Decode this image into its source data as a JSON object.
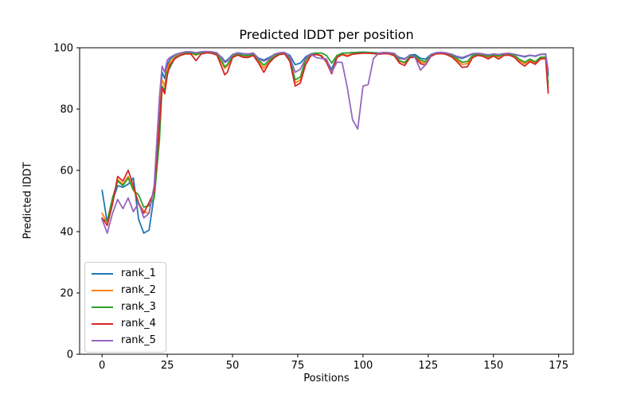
{
  "chart_data": {
    "type": "line",
    "title": "Predicted lDDT per position",
    "xlabel": "Positions",
    "ylabel": "Predicted lDDT",
    "xlim": [
      -8.6,
      180.6
    ],
    "ylim": [
      0,
      100
    ],
    "xticks": [
      0,
      25,
      50,
      75,
      100,
      125,
      150,
      175
    ],
    "yticks": [
      0,
      20,
      40,
      60,
      80,
      100
    ],
    "grid": false,
    "legend_position": "lower left",
    "colors": {
      "background": "#ffffff",
      "spine": "#000000",
      "legend_border": "#cccccc"
    },
    "x": [
      0,
      2,
      4,
      6,
      8,
      10,
      12,
      14,
      16,
      18,
      20,
      22,
      23,
      24,
      25,
      26,
      28,
      30,
      32,
      34,
      36,
      38,
      40,
      42,
      44,
      46,
      47,
      48,
      50,
      52,
      54,
      56,
      58,
      60,
      62,
      64,
      66,
      68,
      70,
      72,
      74,
      76,
      78,
      80,
      82,
      84,
      86,
      88,
      90,
      92,
      94,
      96,
      98,
      100,
      102,
      104,
      106,
      108,
      110,
      112,
      114,
      116,
      118,
      120,
      122,
      124,
      126,
      128,
      130,
      132,
      134,
      136,
      138,
      140,
      142,
      144,
      146,
      148,
      150,
      152,
      154,
      156,
      158,
      160,
      162,
      164,
      166,
      168,
      170,
      171
    ],
    "series": [
      {
        "name": "rank_1",
        "color": "#1f77b4",
        "values": [
          53.5,
          43,
          50,
          55,
          54.5,
          55.5,
          57.5,
          44,
          39.5,
          40.5,
          52,
          81,
          92,
          90,
          94.5,
          96.3,
          97.6,
          98.2,
          98.5,
          98.6,
          98.2,
          98.5,
          98.6,
          98.5,
          98.2,
          96.8,
          95.6,
          96,
          97.8,
          98.3,
          98,
          97.9,
          98.2,
          96.6,
          96,
          96.8,
          97.8,
          98.3,
          98.4,
          97.5,
          94.5,
          95,
          97,
          98,
          98.3,
          97.2,
          95.8,
          93,
          97.2,
          98.2,
          98.3,
          98.4,
          98.5,
          98.6,
          98.5,
          98.4,
          98.3,
          98.4,
          98.3,
          98,
          96.8,
          96.4,
          97.6,
          97.8,
          96.6,
          96.3,
          97.8,
          98.4,
          98.5,
          98.3,
          97.8,
          97,
          96.5,
          97.2,
          98,
          98.1,
          97.9,
          97.6,
          97.9,
          97.7,
          98,
          98.1,
          97.8,
          97.4,
          97,
          97.5,
          97.2,
          97.8,
          97.9,
          91
        ]
      },
      {
        "name": "rank_2",
        "color": "#ff7f0e",
        "values": [
          46,
          43,
          50,
          57,
          55.5,
          58,
          54,
          49.5,
          46.5,
          46,
          55,
          83,
          89.5,
          87.5,
          93,
          95.5,
          97,
          97.8,
          98.2,
          98.2,
          97.6,
          98.2,
          98.4,
          98.3,
          97.8,
          95,
          93.3,
          94,
          97,
          97.8,
          97.3,
          97.2,
          97.7,
          95.5,
          93.3,
          95.3,
          97,
          98,
          98.1,
          96,
          88.5,
          89.5,
          95,
          97.6,
          97.9,
          97.5,
          95.6,
          91.8,
          97,
          97.9,
          97.5,
          98,
          98.2,
          98.3,
          98.3,
          98.2,
          98,
          98.2,
          98.1,
          97.6,
          95.6,
          95,
          97,
          97.2,
          95.4,
          95,
          97.4,
          98.1,
          98.2,
          97.9,
          97.2,
          96,
          94.6,
          94.8,
          97.2,
          97.7,
          97.4,
          96.8,
          97.5,
          97,
          97.7,
          97.8,
          97.2,
          95.8,
          94.8,
          96,
          95,
          96.6,
          96.8,
          87
        ]
      },
      {
        "name": "rank_3",
        "color": "#2ca02c",
        "values": [
          44,
          43.5,
          51,
          56.5,
          55,
          57.5,
          53.5,
          52,
          48,
          48.5,
          51,
          70,
          87.5,
          86,
          92,
          93.5,
          96.8,
          97.6,
          98.3,
          98.4,
          97.8,
          98.3,
          98.5,
          98.4,
          98,
          95.5,
          93.8,
          94.5,
          97.2,
          98,
          97.5,
          97.4,
          97.9,
          96,
          94.3,
          95.8,
          97.2,
          98.1,
          98.2,
          96.5,
          89.5,
          90.5,
          96,
          97.8,
          98.2,
          98.3,
          97.5,
          95,
          97.5,
          98.2,
          98.3,
          98.4,
          98.5,
          98.5,
          98.4,
          98.3,
          98.2,
          98.3,
          98.2,
          97.8,
          95.8,
          95.2,
          97.2,
          97.4,
          96,
          95.5,
          97.6,
          98.3,
          98.4,
          98.1,
          97.4,
          96.5,
          95.3,
          95.5,
          97.5,
          97.9,
          97.6,
          97.2,
          97.7,
          97.3,
          97.9,
          98,
          97.5,
          96.2,
          95.3,
          96.3,
          95.4,
          96.9,
          97,
          88.2
        ]
      },
      {
        "name": "rank_4",
        "color": "#d62728",
        "values": [
          44.5,
          42,
          49,
          58,
          56.5,
          60,
          55,
          49,
          46,
          49.5,
          53,
          75,
          87,
          85,
          91,
          94.5,
          96.5,
          97.5,
          98,
          98,
          95.8,
          98,
          98.3,
          98.2,
          97.6,
          93.5,
          91.2,
          92,
          96.8,
          97.6,
          96.9,
          96.8,
          97.5,
          95,
          92,
          95,
          96.8,
          97.8,
          98,
          95.5,
          87.5,
          88.5,
          94.5,
          97.4,
          97.8,
          97.4,
          95.3,
          91.5,
          96.8,
          97.8,
          97.2,
          97.9,
          98.1,
          98.2,
          98.2,
          98.1,
          97.9,
          98.1,
          98,
          97.4,
          95,
          94.2,
          96.8,
          96.9,
          94.8,
          94.4,
          97.2,
          98,
          98.1,
          97.8,
          97,
          95.5,
          93.6,
          93.8,
          96.8,
          97.5,
          97.2,
          96.4,
          97.3,
          96.3,
          97.5,
          97.6,
          96.9,
          95.2,
          94,
          95.5,
          94.6,
          96.3,
          96.5,
          85.2
        ]
      },
      {
        "name": "rank_5",
        "color": "#9467bd",
        "values": [
          44,
          39.5,
          46,
          50.5,
          47.5,
          51,
          46.5,
          49.5,
          44.5,
          46,
          55,
          84,
          94,
          92,
          96,
          96.8,
          97.8,
          98.3,
          98.7,
          98.7,
          98.4,
          98.7,
          98.8,
          98.7,
          98.4,
          96.5,
          95.2,
          95.6,
          97.8,
          98.4,
          98.1,
          98,
          98.3,
          96.4,
          95.6,
          96.4,
          97.9,
          98.4,
          98.5,
          97,
          92,
          93,
          96.5,
          98,
          96.8,
          96.5,
          96.3,
          92,
          95.3,
          95.2,
          87,
          76.5,
          73.5,
          87.5,
          88,
          96.5,
          98.2,
          98.5,
          98.4,
          98.2,
          96.5,
          96.2,
          97.7,
          96.8,
          92.7,
          94.5,
          97.7,
          98.4,
          98.5,
          98.3,
          97.9,
          97.2,
          96.8,
          97.4,
          98.1,
          98.2,
          98,
          97.7,
          98,
          97.8,
          98.1,
          98.2,
          97.9,
          97.5,
          97.2,
          97.6,
          97.3,
          97.9,
          98,
          92.5
        ]
      }
    ]
  }
}
